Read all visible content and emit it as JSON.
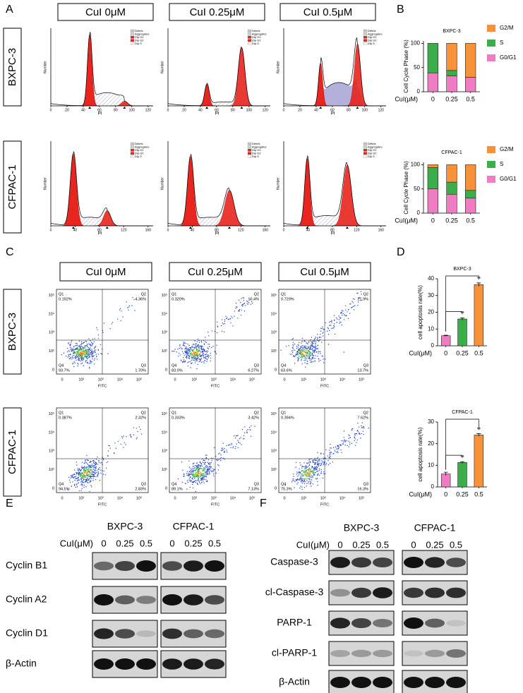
{
  "panel_labels": [
    "A",
    "B",
    "C",
    "D",
    "E",
    "F"
  ],
  "cell_lines": [
    "BXPC-3",
    "CFPAC-1"
  ],
  "conditions": [
    "CuI 0μM",
    "CuI 0.25μM",
    "CuI 0.5μM"
  ],
  "cell_cycle": {
    "x_label": "PI",
    "y_label": "Number",
    "legend": [
      "Debris",
      "Aggregates",
      "Dip G1",
      "Dip G2",
      "Dip S"
    ],
    "xticks": [
      [
        0,
        20,
        40,
        60,
        80,
        100,
        120
      ],
      [
        0,
        40,
        80,
        120,
        160
      ]
    ]
  },
  "apoptosis_flow": {
    "x_label": "FITC",
    "quadrant_names": [
      "Q1",
      "Q2",
      "Q3",
      "Q4"
    ],
    "axis_ticks": [
      "0",
      "10²",
      "10³",
      "10⁴",
      "10⁵"
    ],
    "quadrants": [
      [
        [
          "0.192%",
          "4.36%",
          "1.70%",
          "93.7%"
        ],
        [
          "0.320%",
          "10.4%",
          "6.27%",
          "83.0%"
        ],
        [
          "0.729%",
          "21.9%",
          "13.7%",
          "63.6%"
        ]
      ],
      [
        [
          "0.387%",
          "2.32%",
          "2.83%",
          "94.5%"
        ],
        [
          "0.333%",
          "3.42%",
          "7.13%",
          "89.1%"
        ],
        [
          "0.394%",
          "7.62%",
          "16.3%",
          "75.3%"
        ]
      ]
    ]
  },
  "chart_data": [
    {
      "type": "stacked_bar",
      "title": "BXPC-3",
      "categories": [
        "0",
        "0.25",
        "0.5"
      ],
      "x_label": "CuI(μM)",
      "y_label": "Cell Cycle Phase  (%)",
      "ylim": [
        0,
        105
      ],
      "yticks": [
        0,
        50,
        100
      ],
      "legend": "right",
      "series": [
        {
          "name": "G0/G1",
          "color": "#f07cc4",
          "values": [
            39,
            33,
            30
          ]
        },
        {
          "name": "S",
          "color": "#3cae49",
          "values": [
            61,
            11,
            0
          ]
        },
        {
          "name": "G2/M",
          "color": "#f7923a",
          "values": [
            0,
            56,
            70
          ]
        }
      ]
    },
    {
      "type": "stacked_bar",
      "title": "CFPAC-1",
      "categories": [
        "0",
        "0.25",
        "0.5"
      ],
      "x_label": "CuI(μM)",
      "y_label": "Cell Cycle Phase  (%)",
      "ylim": [
        0,
        105
      ],
      "yticks": [
        0,
        50,
        100
      ],
      "legend": "right",
      "series": [
        {
          "name": "G0/G1",
          "color": "#f07cc4",
          "values": [
            50,
            39,
            31
          ]
        },
        {
          "name": "S",
          "color": "#3cae49",
          "values": [
            44,
            25,
            16
          ]
        },
        {
          "name": "G2/M",
          "color": "#f7923a",
          "values": [
            6,
            36,
            53
          ]
        }
      ]
    },
    {
      "type": "bar",
      "title": "BXPC-3",
      "categories": [
        "0",
        "0.25",
        "0.5"
      ],
      "x_label": "CuI(μM)",
      "y_label": "cell apoptosis rate(%)",
      "values": [
        6,
        16,
        36.5
      ],
      "errors": [
        0.3,
        0.7,
        1
      ],
      "colors": [
        "#f07cc4",
        "#3cae49",
        "#f7923a"
      ],
      "ylim": [
        0,
        40
      ],
      "yticks": [
        0,
        10,
        20,
        30,
        40
      ],
      "significance": [
        {
          "label": "**",
          "from": 0,
          "to": 1
        },
        {
          "label": "**",
          "from": 0,
          "to": 2
        }
      ]
    },
    {
      "type": "bar",
      "title": "CFPAC-1",
      "categories": [
        "0",
        "0.25",
        "0.5"
      ],
      "x_label": "CuI(μM)",
      "y_label": "cell apoptosis rate(%)",
      "values": [
        6,
        11.3,
        24
      ],
      "errors": [
        0.8,
        0.4,
        0.6
      ],
      "colors": [
        "#f07cc4",
        "#3cae49",
        "#f7923a"
      ],
      "ylim": [
        0,
        30
      ],
      "yticks": [
        0,
        10,
        20,
        30
      ],
      "significance": [
        {
          "label": "**",
          "from": 0,
          "to": 1
        },
        {
          "label": "**",
          "from": 0,
          "to": 2
        }
      ]
    }
  ],
  "western_E": {
    "groups": [
      "BXPC-3",
      "CFPAC-1"
    ],
    "dose_label": "CuI(μM)",
    "doses": [
      "0",
      "0.25",
      "0.5"
    ],
    "proteins": [
      "Cyclin B1",
      "Cyclin A2",
      "Cyclin D1",
      "β-Actin"
    ]
  },
  "western_F": {
    "groups": [
      "BXPC-3",
      "CFPAC-1"
    ],
    "dose_label": "CuI(μM)",
    "doses": [
      "0",
      "0.25",
      "0.5"
    ],
    "proteins": [
      "Caspase-3",
      "cl-Caspase-3",
      "PARP-1",
      "cl-PARP-1",
      "β-Actin"
    ]
  }
}
